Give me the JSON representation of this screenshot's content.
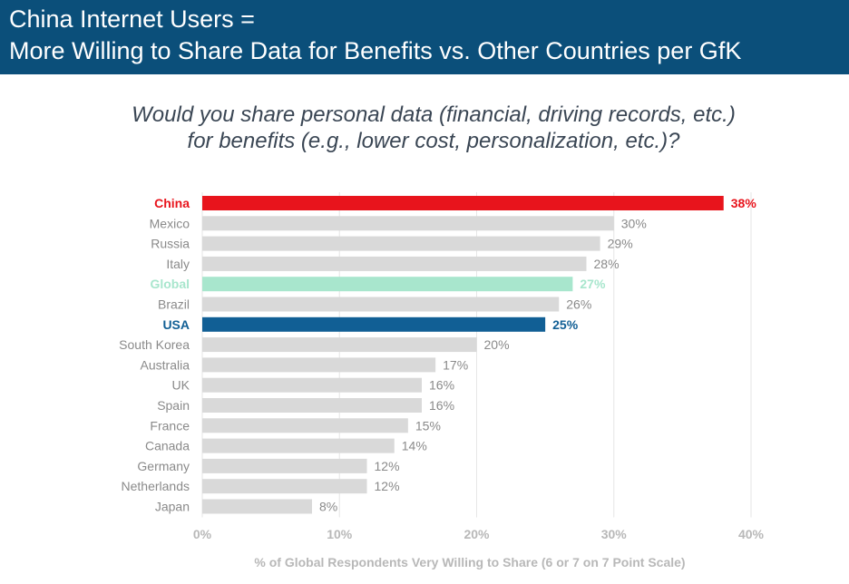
{
  "header": {
    "title_line1": "China Internet Users =",
    "title_line2": "More Willing to Share Data for Benefits vs. Other Countries per GfK"
  },
  "chart_data": {
    "type": "bar",
    "orientation": "horizontal",
    "title_line1": "Would you share personal data (financial, driving records, etc.)",
    "title_line2": "for benefits (e.g., lower cost, personalization, etc.)?",
    "xlabel": "% of Global Respondents Very Willing to Share (6 or 7 on 7 Point Scale)",
    "ylabel": "",
    "xlim": [
      0,
      40
    ],
    "x_ticks": [
      0,
      10,
      20,
      30,
      40
    ],
    "x_tick_labels": [
      "0%",
      "10%",
      "20%",
      "30%",
      "40%"
    ],
    "grid": "vertical",
    "categories": [
      "China",
      "Mexico",
      "Russia",
      "Italy",
      "Global",
      "Brazil",
      "USA",
      "South Korea",
      "Australia",
      "UK",
      "Spain",
      "France",
      "Canada",
      "Germany",
      "Netherlands",
      "Japan"
    ],
    "values": [
      38,
      30,
      29,
      28,
      27,
      26,
      25,
      20,
      17,
      16,
      16,
      15,
      14,
      12,
      12,
      8
    ],
    "value_labels": [
      "38%",
      "30%",
      "29%",
      "28%",
      "27%",
      "26%",
      "25%",
      "20%",
      "17%",
      "16%",
      "16%",
      "15%",
      "14%",
      "12%",
      "12%",
      "8%"
    ],
    "highlights": {
      "China": "#e8141c",
      "Global": "#a8e6cd",
      "USA": "#115f95"
    },
    "default_bar_color": "#d9d9d9",
    "default_label_color": "#8a8a8a",
    "axis_text_color": "#b8b8b8"
  }
}
